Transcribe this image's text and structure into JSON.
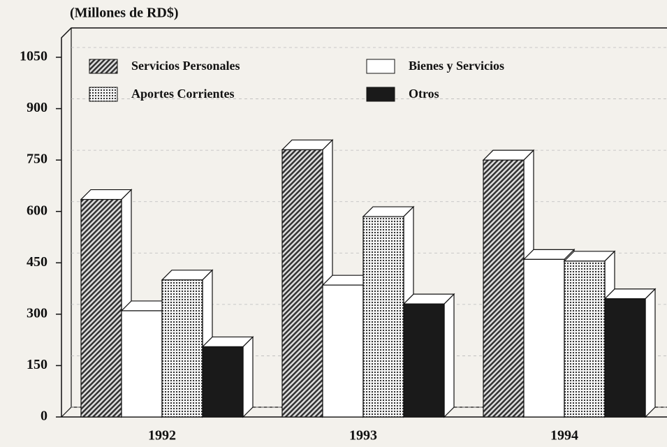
{
  "chart_data": {
    "type": "bar3d",
    "title": "(Millones de RD$)",
    "categories": [
      "1992",
      "1993",
      "1994"
    ],
    "series": [
      {
        "name": "Servicios Personales",
        "color": "#444444",
        "pattern": "hatch",
        "values": [
          635,
          780,
          750
        ]
      },
      {
        "name": "Bienes y Servicios",
        "color": "#ffffff",
        "pattern": "none",
        "values": [
          310,
          385,
          460
        ]
      },
      {
        "name": "Aportes Corrientes",
        "color": "#555555",
        "pattern": "dots",
        "values": [
          400,
          585,
          455
        ]
      },
      {
        "name": "Otros",
        "color": "#1a1a1a",
        "pattern": "solid",
        "values": [
          205,
          330,
          345
        ]
      }
    ],
    "ylim": [
      0,
      1050
    ],
    "yticks": [
      0,
      150,
      300,
      450,
      600,
      750,
      900,
      1050
    ],
    "grid": true
  }
}
